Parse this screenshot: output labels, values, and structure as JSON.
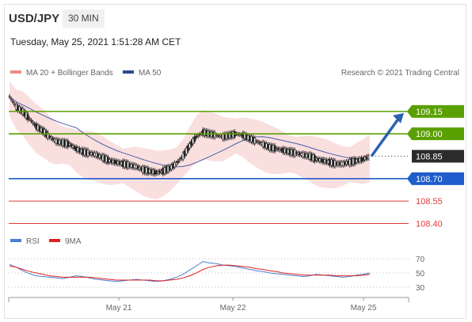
{
  "header": {
    "pair": "USD/JPY",
    "timeframe": "30 MIN",
    "datetime": "Tuesday, May 25, 2021 1:51:28 AM CET",
    "attribution": "Research © 2021 Trading Central"
  },
  "colors": {
    "resistance": "#5aa000",
    "pivot": "#1f5dcc",
    "support": "#e23b3b",
    "bollinger": "#f0a4a4",
    "ma50": "#4a5fa8",
    "arrow": "#2a61b0",
    "rsi": "#4a7fd4",
    "rsi_ma": "#e02020",
    "candle_up": "#222222",
    "candle_down": "#222222"
  },
  "chart_data": [
    {
      "type": "line",
      "title": "",
      "legend": [
        {
          "name": "MA 20 + Bollinger Bands",
          "color": "#f08a8a"
        },
        {
          "name": "MA 50",
          "color": "#2f4b8f"
        }
      ],
      "x_ticks": [
        "May 21",
        "May 22",
        "May 25"
      ],
      "ylim": [
        108.36,
        109.34
      ],
      "last_price": 108.85,
      "price_path": [
        109.25,
        109.18,
        109.15,
        109.1,
        109.05,
        109.02,
        108.98,
        108.95,
        108.94,
        108.93,
        108.9,
        108.88,
        108.87,
        108.86,
        108.84,
        108.82,
        108.81,
        108.8,
        108.79,
        108.78,
        108.76,
        108.75,
        108.74,
        108.75,
        108.77,
        108.8,
        108.85,
        108.92,
        108.98,
        109.01,
        109.0,
        108.99,
        108.98,
        108.99,
        109.0,
        108.99,
        108.97,
        108.95,
        108.93,
        108.91,
        108.9,
        108.89,
        108.88,
        108.87,
        108.86,
        108.85,
        108.83,
        108.82,
        108.81,
        108.8,
        108.8,
        108.81,
        108.82,
        108.83,
        108.85
      ],
      "levels": [
        {
          "value": "109.15",
          "kind": "resistance"
        },
        {
          "value": "109.00",
          "kind": "resistance"
        },
        {
          "value": "108.85",
          "kind": "last"
        },
        {
          "value": "108.70",
          "kind": "pivot"
        },
        {
          "value": "108.55",
          "kind": "support"
        },
        {
          "value": "108.40",
          "kind": "support"
        }
      ]
    },
    {
      "type": "line",
      "legend": [
        {
          "name": "RSI",
          "color": "#4a7fd4"
        },
        {
          "name": "9MA",
          "color": "#e02020"
        }
      ],
      "y_ticks": [
        "70",
        "50",
        "30"
      ],
      "ylim": [
        20,
        80
      ],
      "rsi": [
        62,
        58,
        53,
        49,
        46,
        45,
        44,
        43,
        42,
        44,
        46,
        45,
        43,
        41,
        40,
        39,
        38,
        39,
        40,
        41,
        40,
        39,
        38,
        39,
        41,
        44,
        48,
        54,
        60,
        66,
        64,
        63,
        61,
        60,
        59,
        57,
        55,
        53,
        52,
        50,
        49,
        48,
        47,
        46,
        45,
        46,
        48,
        47,
        46,
        45,
        44,
        45,
        47,
        48,
        50
      ],
      "rsi_ma": [
        60,
        58,
        55,
        52,
        50,
        48,
        46,
        45,
        44,
        44,
        44,
        44,
        44,
        43,
        42,
        41,
        40,
        40,
        40,
        40,
        40,
        40,
        39,
        39,
        40,
        41,
        43,
        46,
        50,
        55,
        58,
        60,
        61,
        61,
        60,
        59,
        58,
        56,
        55,
        53,
        52,
        50,
        49,
        48,
        47,
        47,
        47,
        47,
        47,
        46,
        46,
        46,
        46,
        47,
        48
      ]
    }
  ]
}
